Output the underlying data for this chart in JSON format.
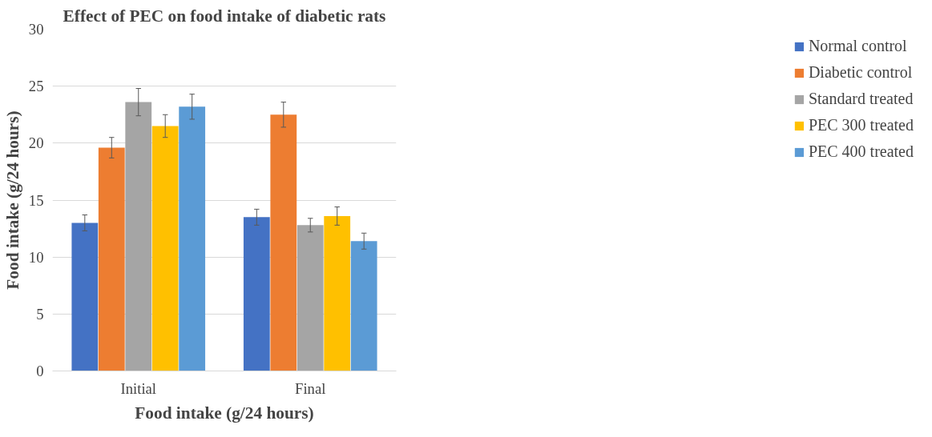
{
  "chart_data": {
    "type": "bar",
    "title": "Effect of PEC on food intake of diabetic rats",
    "xlabel": "Food intake (g/24 hours)",
    "ylabel": "Food intake (g/24 hours)",
    "categories": [
      "Initial",
      "Final"
    ],
    "series": [
      {
        "name": "Normal control",
        "color": "#4472c4",
        "values": [
          13.0,
          13.5
        ],
        "errors": [
          0.7,
          0.7
        ]
      },
      {
        "name": "Diabetic control",
        "color": "#ed7d31",
        "values": [
          19.6,
          22.5
        ],
        "errors": [
          0.9,
          1.1
        ]
      },
      {
        "name": "Standard treated",
        "color": "#a5a5a5",
        "values": [
          23.6,
          12.8
        ],
        "errors": [
          1.2,
          0.6
        ]
      },
      {
        "name": "PEC 300 treated",
        "color": "#ffc000",
        "values": [
          21.5,
          13.6
        ],
        "errors": [
          1.0,
          0.8
        ]
      },
      {
        "name": "PEC 400 treated",
        "color": "#5b9bd5",
        "values": [
          23.2,
          11.4
        ],
        "errors": [
          1.1,
          0.7
        ]
      }
    ],
    "ylim": [
      0,
      30
    ],
    "yticks": [
      0,
      5,
      10,
      15,
      20,
      25,
      30
    ],
    "grid": "y",
    "legend": "right"
  }
}
